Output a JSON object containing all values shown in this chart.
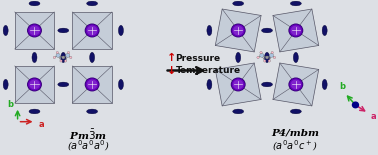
{
  "bg_color": "#dde0e5",
  "oct_face_color": "#c5cdd8",
  "oct_edge_color": "#555566",
  "pb_color": "#6600bb",
  "pb_edge_color": "#330077",
  "pb_inner_color": "#9944dd",
  "i_color": "#111166",
  "i_edge_color": "#000033",
  "left_label_line1": "Pm$\\bar{3}$m",
  "left_label_line2": "($a^0a^0a^0$)",
  "right_label_line1": "P4/mbm",
  "right_label_line2": "($a^0a^0c^+$)",
  "arrow_color": "#111111",
  "pressure_color": "#cc0000",
  "temperature_color": "#cc0000",
  "axis_b_color": "#22aa22",
  "axis_a_left_color": "#cc2222",
  "axis_a_right_color": "#cc2266",
  "axis_c_color": "#000088"
}
